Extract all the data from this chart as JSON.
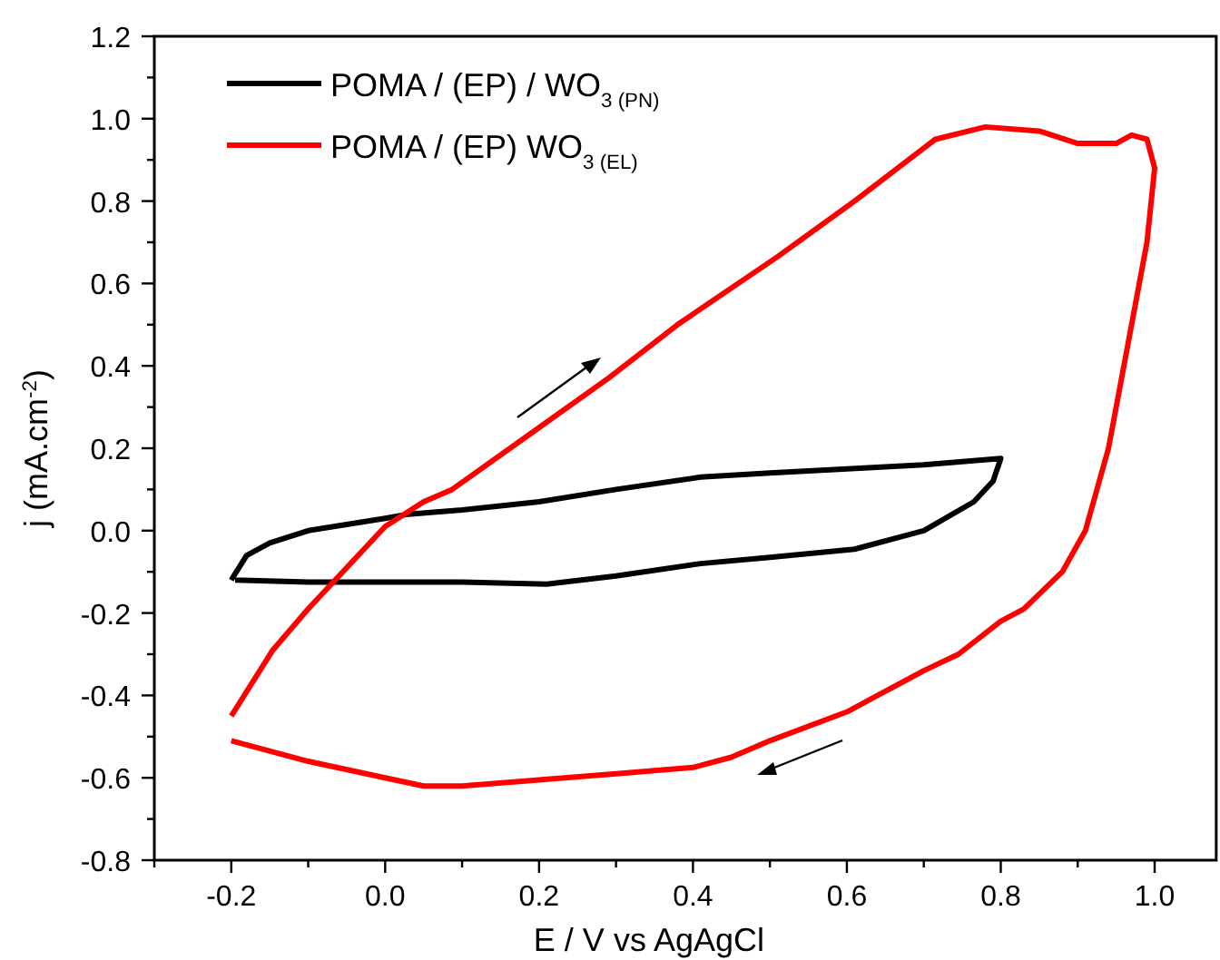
{
  "chart_data": {
    "type": "line",
    "xlabel": "E / V vs AgAgCl",
    "ylabel": "j (mA.cm$^{-2}$)",
    "xlim": [
      -0.3,
      1.08
    ],
    "ylim": [
      -0.8,
      1.2
    ],
    "xticks": [
      {
        "value": -0.3,
        "label": null
      },
      -0.2,
      {
        "value": -0.1,
        "label": null
      },
      "0.0",
      {
        "value": 0.1,
        "label": null
      },
      0.2,
      {
        "value": 0.3,
        "label": null
      },
      0.4,
      {
        "value": 0.5,
        "label": null
      },
      0.6,
      {
        "value": 0.7,
        "label": null
      },
      0.8,
      {
        "value": 0.9,
        "label": null
      },
      "1.0"
    ],
    "yticks": [
      -0.8,
      {
        "value": -0.7,
        "label": null
      },
      -0.6,
      {
        "value": -0.5,
        "label": null
      },
      -0.4,
      {
        "value": -0.3,
        "label": null
      },
      -0.2,
      {
        "value": -0.1,
        "label": null
      },
      {
        "value": 0,
        "label": "0.0"
      },
      {
        "value": 0.1,
        "label": null
      },
      0.2,
      {
        "value": 0.3,
        "label": null
      },
      0.4,
      {
        "value": 0.5,
        "label": null
      },
      0.6,
      {
        "value": 0.7,
        "label": null
      },
      0.8,
      {
        "value": 0.9,
        "label": null
      },
      {
        "value": 1,
        "label": "1.0"
      },
      {
        "value": 1.1,
        "label": null
      },
      1.2
    ],
    "grid": false,
    "legend": "top left",
    "marker": "none",
    "line_style": "solid",
    "series": [
      {
        "name": "POMA / (EP) / WO$_{3 (PN)}$",
        "color": "#000000",
        "x": [
          -0.2,
          -0.18,
          -0.15,
          -0.1,
          0.0,
          0.03,
          0.1,
          0.2,
          0.3,
          0.41,
          0.5,
          0.6,
          0.7,
          0.8,
          0.79,
          0.765,
          0.7,
          0.61,
          0.5,
          0.41,
          0.3,
          0.21,
          0.1,
          0.0,
          -0.1,
          -0.195
        ],
        "values": [
          -0.12,
          -0.06,
          -0.03,
          0.0,
          0.03,
          0.04,
          0.05,
          0.07,
          0.1,
          0.13,
          0.14,
          0.15,
          0.16,
          0.175,
          0.12,
          0.07,
          0.0,
          -0.045,
          -0.065,
          -0.08,
          -0.11,
          -0.13,
          -0.125,
          -0.125,
          -0.125,
          -0.12
        ]
      },
      {
        "name": "POMA / (EP) WO$_{3 (EL)}$",
        "color": "#ff0000",
        "x": [
          -0.2,
          -0.146,
          -0.1,
          -0.065,
          0.0,
          0.05,
          0.087,
          0.2,
          0.29,
          0.38,
          0.51,
          0.61,
          0.715,
          0.78,
          0.85,
          0.9,
          0.95,
          0.97,
          0.99,
          1.0,
          0.99,
          0.98,
          0.96,
          0.94,
          0.91,
          0.88,
          0.83,
          0.8,
          0.745,
          0.7,
          0.64,
          0.6,
          0.5,
          0.45,
          0.4,
          0.3,
          0.2,
          0.1,
          0.05,
          0.0,
          -0.1,
          -0.18,
          -0.2
        ],
        "values": [
          -0.45,
          -0.29,
          -0.19,
          -0.12,
          0.01,
          0.07,
          0.1,
          0.25,
          0.37,
          0.5,
          0.665,
          0.8,
          0.95,
          0.98,
          0.97,
          0.94,
          0.94,
          0.96,
          0.95,
          0.88,
          0.7,
          0.6,
          0.4,
          0.2,
          0.0,
          -0.1,
          -0.19,
          -0.22,
          -0.3,
          -0.34,
          -0.4,
          -0.44,
          -0.51,
          -0.55,
          -0.575,
          -0.59,
          -0.605,
          -0.62,
          -0.62,
          -0.6,
          -0.56,
          -0.52,
          -0.51
        ]
      }
    ]
  }
}
